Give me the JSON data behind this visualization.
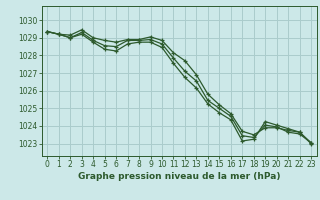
{
  "title": "Graphe pression niveau de la mer (hPa)",
  "background_color": "#cce8e8",
  "plot_bg_color": "#cce8e8",
  "grid_color": "#aacccc",
  "line_color": "#2d5a2d",
  "xlim": [
    -0.5,
    23.5
  ],
  "ylim": [
    1022.3,
    1030.8
  ],
  "yticks": [
    1023,
    1024,
    1025,
    1026,
    1027,
    1028,
    1029,
    1030
  ],
  "xticks": [
    0,
    1,
    2,
    3,
    4,
    5,
    6,
    7,
    8,
    9,
    10,
    11,
    12,
    13,
    14,
    15,
    16,
    17,
    18,
    19,
    20,
    21,
    22,
    23
  ],
  "series": [
    {
      "x": [
        0,
        1,
        2,
        3,
        4,
        5,
        6,
        7,
        8,
        9,
        10,
        11,
        12,
        13,
        14,
        15,
        16,
        17,
        18,
        19,
        20,
        21,
        22,
        23
      ],
      "y": [
        1029.35,
        1029.2,
        1029.15,
        1029.45,
        1029.0,
        1028.85,
        1028.75,
        1028.9,
        1028.9,
        1029.05,
        1028.85,
        1028.15,
        1027.7,
        1026.9,
        1025.8,
        1025.2,
        1024.7,
        1023.7,
        1023.5,
        1023.9,
        1023.9,
        1023.75,
        1023.65,
        1023.0
      ]
    },
    {
      "x": [
        0,
        1,
        2,
        3,
        4,
        5,
        6,
        7,
        8,
        9,
        10,
        11,
        12,
        13,
        14,
        15,
        16,
        17,
        18,
        19,
        20,
        21,
        22,
        23
      ],
      "y": [
        1029.35,
        1029.2,
        1029.0,
        1029.3,
        1028.85,
        1028.55,
        1028.5,
        1028.85,
        1028.85,
        1028.9,
        1028.65,
        1027.85,
        1027.1,
        1026.55,
        1025.45,
        1025.0,
        1024.55,
        1023.45,
        1023.35,
        1024.05,
        1023.95,
        1023.65,
        1023.55,
        1023.05
      ]
    },
    {
      "x": [
        0,
        1,
        2,
        3,
        4,
        5,
        6,
        7,
        8,
        9,
        10,
        11,
        12,
        13,
        14,
        15,
        16,
        17,
        18,
        19,
        20,
        21,
        22,
        23
      ],
      "y": [
        1029.35,
        1029.2,
        1029.0,
        1029.2,
        1028.75,
        1028.35,
        1028.25,
        1028.65,
        1028.75,
        1028.75,
        1028.45,
        1027.55,
        1026.75,
        1026.15,
        1025.25,
        1024.75,
        1024.35,
        1023.15,
        1023.25,
        1024.25,
        1024.05,
        1023.85,
        1023.65,
        1023.05
      ]
    }
  ],
  "marker": "+",
  "marker_size": 3.5,
  "line_width": 0.9,
  "tick_fontsize": 5.5,
  "title_fontsize": 6.5
}
